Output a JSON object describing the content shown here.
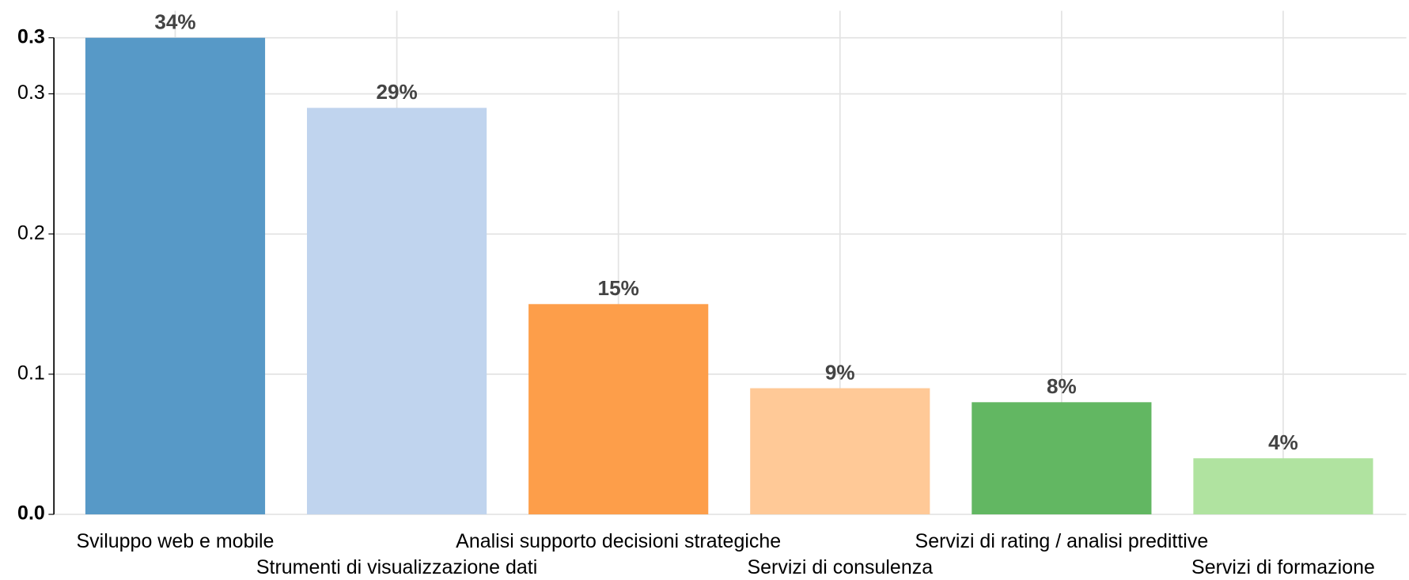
{
  "chart_data": {
    "type": "bar",
    "categories": [
      "Sviluppo web e mobile",
      "Strumenti di visualizzazione dati",
      "Analisi supporto decisioni strategiche",
      "Servizi di consulenza",
      "Servizi di rating / analisi predittive",
      "Servizi di formazione"
    ],
    "values": [
      0.34,
      0.29,
      0.15,
      0.09,
      0.08,
      0.04
    ],
    "value_labels": [
      "34%",
      "29%",
      "15%",
      "9%",
      "8%",
      "4%"
    ],
    "colors": [
      "#5799c7",
      "#c0d4ee",
      "#fd9e4a",
      "#ffc997",
      "#62b762",
      "#b0e3a0"
    ],
    "ylim": [
      0,
      0.34
    ],
    "yticks": [
      {
        "value": 0,
        "label": "0.0"
      },
      0.1,
      0.2,
      0.3,
      {
        "value": 0.34,
        "label": "0.3"
      }
    ],
    "grid": true
  }
}
